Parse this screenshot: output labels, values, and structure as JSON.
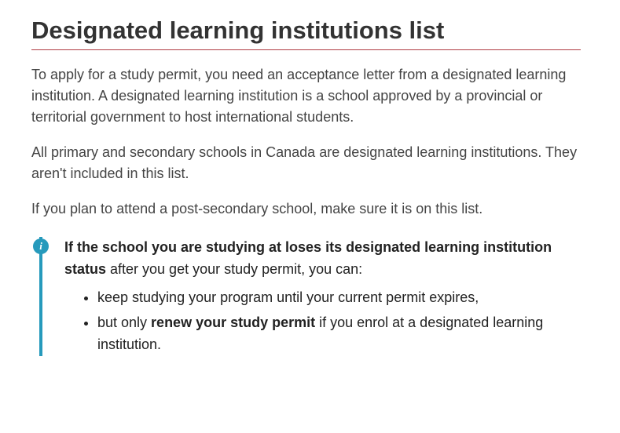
{
  "heading": {
    "text": "Designated learning institutions list",
    "underline_color": "#af3c43",
    "fontsize": 31
  },
  "paragraphs": {
    "p1": "To apply for a study permit, you need an acceptance letter from a designated learning institution. A designated learning institution is a school approved by a provincial or territorial government to host international students.",
    "p2": "All primary and secondary schools in Canada are designated learning institutions. They aren't included in this list.",
    "p3": "If you plan to attend a post-secondary school, make sure it is on this list.",
    "text_color": "#444444",
    "fontsize": 18
  },
  "info_callout": {
    "border_color": "#269abc",
    "icon": {
      "glyph": "i",
      "bg_color": "#269abc",
      "fg_color": "#ffffff"
    },
    "lead_bold_prefix": "If the school you are studying at loses its designated learning institution status",
    "lead_rest": " after you get your study permit, you can:",
    "bullets": {
      "b1": "keep studying your program until your current permit expires,",
      "b2_pre": "but only ",
      "b2_bold": "renew your study permit",
      "b2_post": " if you enrol at a designated learning institution."
    },
    "fontsize": 18,
    "text_color": "#222222"
  }
}
